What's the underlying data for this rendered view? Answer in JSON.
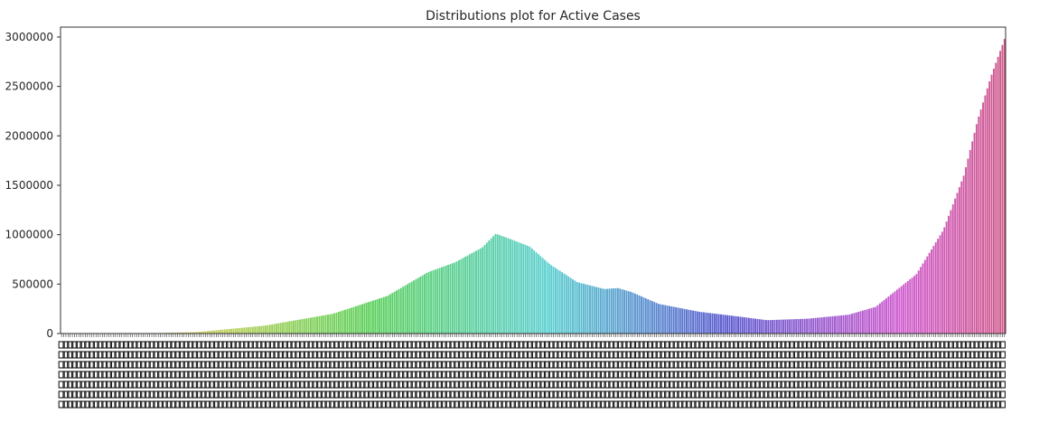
{
  "chart_data": {
    "type": "bar",
    "title": "Distributions plot for Active Cases",
    "xlabel": "",
    "ylabel": "",
    "ylim": [
      0,
      3100000
    ],
    "yticks": [
      0,
      500000,
      1000000,
      1500000,
      2000000,
      2500000,
      3000000
    ],
    "ytick_labels": [
      "0",
      "500000",
      "1000000",
      "1500000",
      "2000000",
      "2500000",
      "3000000"
    ],
    "x_tick_labels_legible": false,
    "bar_count": 440,
    "palette": "husl",
    "knots": [
      [
        0,
        0
      ],
      [
        60,
        0
      ],
      [
        100,
        15000
      ],
      [
        150,
        80000
      ],
      [
        200,
        200000
      ],
      [
        240,
        380000
      ],
      [
        270,
        620000
      ],
      [
        290,
        720000
      ],
      [
        310,
        870000
      ],
      [
        320,
        1010000
      ],
      [
        330,
        960000
      ],
      [
        345,
        880000
      ],
      [
        360,
        700000
      ],
      [
        380,
        520000
      ],
      [
        400,
        450000
      ],
      [
        410,
        460000
      ],
      [
        420,
        420000
      ],
      [
        440,
        300000
      ],
      [
        470,
        220000
      ],
      [
        500,
        170000
      ],
      [
        520,
        135000
      ],
      [
        550,
        150000
      ],
      [
        580,
        190000
      ],
      [
        600,
        270000
      ],
      [
        630,
        600000
      ],
      [
        650,
        1050000
      ],
      [
        665,
        1600000
      ],
      [
        675,
        2150000
      ],
      [
        685,
        2600000
      ],
      [
        695,
        2980000
      ]
    ],
    "knot_index_max": 695,
    "grid": false,
    "legend": "none"
  }
}
